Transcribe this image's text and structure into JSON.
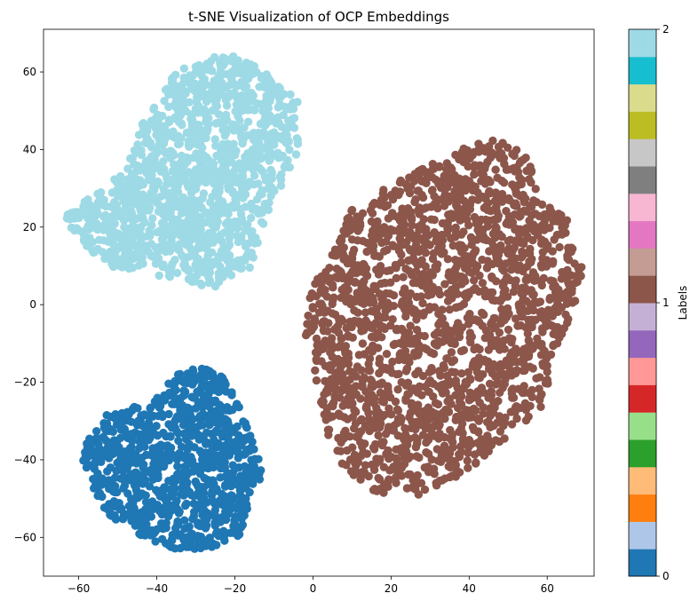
{
  "chart_data": {
    "type": "scatter",
    "title": "t-SNE Visualization of OCP Embeddings",
    "xlabel": "",
    "ylabel": "",
    "xlim": [
      -69,
      72
    ],
    "ylim": [
      -70,
      71
    ],
    "xticks": [
      -60,
      -40,
      -20,
      0,
      20,
      40,
      60
    ],
    "xtick_labels": [
      "−60",
      "−40",
      "−20",
      "0",
      "20",
      "40",
      "60"
    ],
    "yticks": [
      -60,
      -40,
      -20,
      0,
      20,
      40,
      60
    ],
    "ytick_labels": [
      "−60",
      "−40",
      "−20",
      "0",
      "20",
      "40",
      "60"
    ],
    "grid": false,
    "legend": "none",
    "marker_size": 7,
    "series": [
      {
        "label": 0,
        "color": "#1f77b4",
        "approx_point_count": 900,
        "cluster_center": [
          -34,
          -42
        ],
        "x_range": [
          -60,
          -13
        ],
        "y_range": [
          -63,
          -16
        ],
        "outline": [
          [
            -58,
            -34
          ],
          [
            -55,
            -29
          ],
          [
            -48,
            -27
          ],
          [
            -40,
            -24
          ],
          [
            -35,
            -18
          ],
          [
            -30,
            -16
          ],
          [
            -23,
            -18
          ],
          [
            -19,
            -26
          ],
          [
            -15,
            -36
          ],
          [
            -13,
            -43
          ],
          [
            -15,
            -52
          ],
          [
            -19,
            -60
          ],
          [
            -27,
            -63
          ],
          [
            -36,
            -63
          ],
          [
            -45,
            -59
          ],
          [
            -52,
            -55
          ],
          [
            -56,
            -48
          ],
          [
            -59,
            -41
          ]
        ]
      },
      {
        "label": 1,
        "color": "#8c564b",
        "approx_point_count": 2000,
        "cluster_center": [
          33,
          -3
        ],
        "x_range": [
          -2,
          69
        ],
        "y_range": [
          -49,
          43
        ],
        "outline": [
          [
            10,
            26
          ],
          [
            20,
            31
          ],
          [
            30,
            36
          ],
          [
            40,
            41
          ],
          [
            48,
            43
          ],
          [
            55,
            38
          ],
          [
            58,
            28
          ],
          [
            65,
            22
          ],
          [
            69,
            9
          ],
          [
            66,
            -5
          ],
          [
            62,
            -12
          ],
          [
            60,
            -25
          ],
          [
            55,
            -30
          ],
          [
            48,
            -36
          ],
          [
            38,
            -44
          ],
          [
            28,
            -49
          ],
          [
            17,
            -49
          ],
          [
            10,
            -44
          ],
          [
            5,
            -38
          ],
          [
            3,
            -30
          ],
          [
            1,
            -20
          ],
          [
            -2,
            -8
          ],
          [
            -1,
            3
          ],
          [
            5,
            13
          ],
          [
            8,
            22
          ]
        ]
      },
      {
        "label": 2,
        "color": "#9edae5",
        "approx_point_count": 1400,
        "cluster_center": [
          -35,
          30
        ],
        "x_range": [
          -64,
          -2
        ],
        "y_range": [
          4,
          64
        ],
        "outline": [
          [
            -60,
            26
          ],
          [
            -53,
            30
          ],
          [
            -47,
            37
          ],
          [
            -44,
            46
          ],
          [
            -40,
            53
          ],
          [
            -35,
            60
          ],
          [
            -28,
            64
          ],
          [
            -18,
            64
          ],
          [
            -10,
            58
          ],
          [
            -4,
            53
          ],
          [
            -3,
            45
          ],
          [
            -5,
            35
          ],
          [
            -10,
            28
          ],
          [
            -12,
            21
          ],
          [
            -15,
            13
          ],
          [
            -14,
            10
          ],
          [
            -20,
            8
          ],
          [
            -25,
            4
          ],
          [
            -33,
            6
          ],
          [
            -42,
            8
          ],
          [
            -50,
            9
          ],
          [
            -56,
            13
          ],
          [
            -61,
            17
          ],
          [
            -64,
            22
          ]
        ]
      }
    ],
    "colorbar": {
      "label": "Labels",
      "cmap": "tab20",
      "range": [
        0,
        2
      ],
      "ticks": [
        0,
        1,
        2
      ],
      "tick_labels": [
        "0",
        "1",
        "2"
      ],
      "colors": [
        "#1f77b4",
        "#aec7e8",
        "#ff7f0e",
        "#ffbb78",
        "#2ca02c",
        "#98df8a",
        "#d62728",
        "#ff9896",
        "#9467bd",
        "#c5b0d5",
        "#8c564b",
        "#c49c94",
        "#e377c2",
        "#f7b6d2",
        "#7f7f7f",
        "#c7c7c7",
        "#bcbd22",
        "#dbdb8d",
        "#17becf",
        "#9edae5"
      ]
    }
  }
}
